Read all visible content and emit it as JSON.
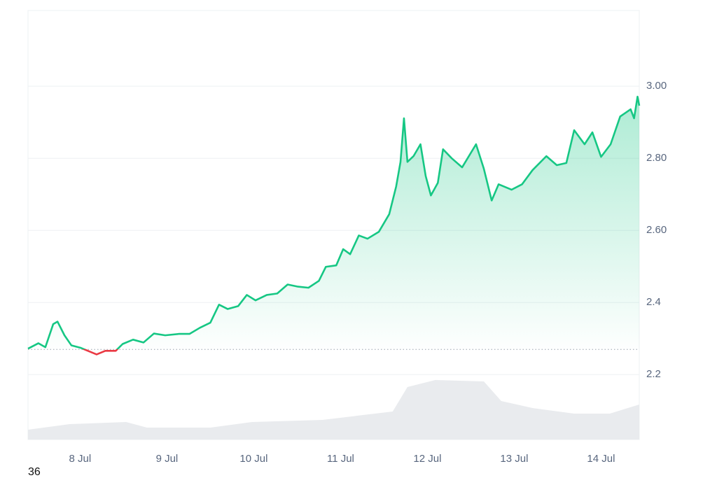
{
  "chart_data": {
    "type": "line",
    "x": [
      7.4,
      7.52,
      7.6,
      7.69,
      7.74,
      7.82,
      7.9,
      8.01,
      8.09,
      8.19,
      8.29,
      8.41,
      8.49,
      8.61,
      8.73,
      8.85,
      8.98,
      9.14,
      9.26,
      9.38,
      9.5,
      9.6,
      9.7,
      9.82,
      9.92,
      10.02,
      10.15,
      10.27,
      10.39,
      10.51,
      10.63,
      10.75,
      10.83,
      10.95,
      11.03,
      11.11,
      11.21,
      11.31,
      11.44,
      11.56,
      11.64,
      11.69,
      11.73,
      11.77,
      11.84,
      11.92,
      11.98,
      12.04,
      12.12,
      12.18,
      12.28,
      12.4,
      12.56,
      12.65,
      12.74,
      12.82,
      12.97,
      13.09,
      13.21,
      13.37,
      13.49,
      13.6,
      13.69,
      13.81,
      13.9,
      14.0,
      14.11,
      14.22,
      14.34,
      14.38,
      14.42,
      14.44
    ],
    "series": [
      {
        "color": "#16c784",
        "below_color": "#ea3943",
        "values": [
          2.272,
          2.287,
          2.276,
          2.34,
          2.347,
          2.309,
          2.281,
          2.274,
          2.266,
          2.256,
          2.266,
          2.266,
          2.285,
          2.297,
          2.289,
          2.314,
          2.309,
          2.313,
          2.313,
          2.33,
          2.344,
          2.394,
          2.382,
          2.39,
          2.421,
          2.406,
          2.421,
          2.425,
          2.45,
          2.444,
          2.441,
          2.46,
          2.499,
          2.503,
          2.548,
          2.534,
          2.586,
          2.577,
          2.596,
          2.645,
          2.722,
          2.79,
          2.911,
          2.79,
          2.806,
          2.839,
          2.751,
          2.697,
          2.732,
          2.825,
          2.8,
          2.775,
          2.839,
          2.771,
          2.683,
          2.728,
          2.713,
          2.728,
          2.767,
          2.806,
          2.781,
          2.787,
          2.878,
          2.839,
          2.872,
          2.804,
          2.839,
          2.916,
          2.936,
          2.911,
          2.971,
          2.946
        ]
      }
    ],
    "baseline": 2.27,
    "volume": {
      "color": "#e9ebee",
      "x": [
        7.4,
        7.88,
        8.53,
        8.77,
        9.5,
        9.98,
        10.79,
        11.6,
        11.77,
        12.09,
        12.65,
        12.85,
        13.21,
        13.69,
        14.1,
        14.44
      ],
      "values": [
        14,
        22,
        25,
        17,
        17,
        25,
        28,
        40,
        75,
        85,
        83,
        55,
        45,
        37,
        37,
        50
      ],
      "ylim": [
        0,
        613
      ]
    },
    "xlim": [
      7.4,
      14.44
    ],
    "xticks": [
      {
        "value": 8,
        "label": "8 Jul"
      },
      {
        "value": 9,
        "label": "9 Jul"
      },
      {
        "value": 10,
        "label": "10 Jul"
      },
      {
        "value": 11,
        "label": "11 Jul"
      },
      {
        "value": 12,
        "label": "12 Jul"
      },
      {
        "value": 13,
        "label": "13 Jul"
      },
      {
        "value": 14,
        "label": "14 Jul"
      }
    ],
    "ylim": [
      2.02,
      3.21
    ],
    "yticks": [
      {
        "value": 3,
        "label": "3.00"
      },
      {
        "value": 2.8,
        "label": "2.80"
      },
      {
        "value": 2.6,
        "label": "2.60"
      },
      2.4,
      2.2
    ],
    "grid": true
  },
  "caption": "36"
}
